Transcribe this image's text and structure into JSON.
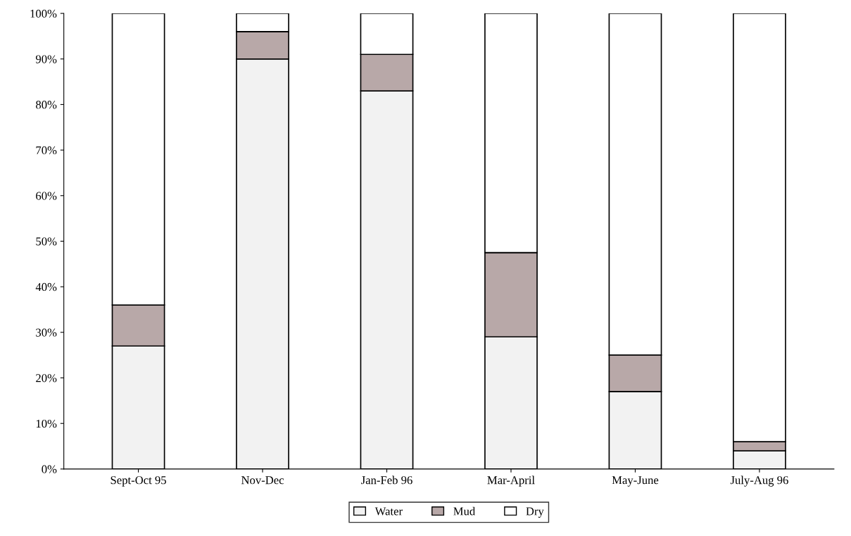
{
  "chart_data": {
    "type": "bar",
    "stacked": true,
    "categories": [
      "Sept-Oct 95",
      "Nov-Dec",
      "Jan-Feb 96",
      "Mar-April",
      "May-June",
      "July-Aug 96"
    ],
    "series": [
      {
        "name": "Water",
        "color": "#f2f2f2",
        "values": [
          27,
          90,
          83,
          29,
          17,
          4
        ]
      },
      {
        "name": "Mud",
        "color": "#b8a8a8",
        "values": [
          9,
          6,
          8,
          18.5,
          8,
          2
        ]
      },
      {
        "name": "Dry",
        "color": "#ffffff",
        "values": [
          64,
          4,
          9,
          52.5,
          75,
          94
        ]
      }
    ],
    "ylim": [
      0,
      100
    ],
    "yticks": [
      {
        "value": 0,
        "label": "0%"
      },
      {
        "value": 10,
        "label": "10%"
      },
      {
        "value": 20,
        "label": "20%"
      },
      {
        "value": 30,
        "label": "30%"
      },
      {
        "value": 40,
        "label": "40%"
      },
      {
        "value": 50,
        "label": "50%"
      },
      {
        "value": 60,
        "label": "60%"
      },
      {
        "value": 70,
        "label": "70%"
      },
      {
        "value": 80,
        "label": "80%"
      },
      {
        "value": 90,
        "label": "90%"
      },
      {
        "value": 100,
        "label": "100%"
      }
    ],
    "grid": false,
    "legend": "bottom"
  }
}
